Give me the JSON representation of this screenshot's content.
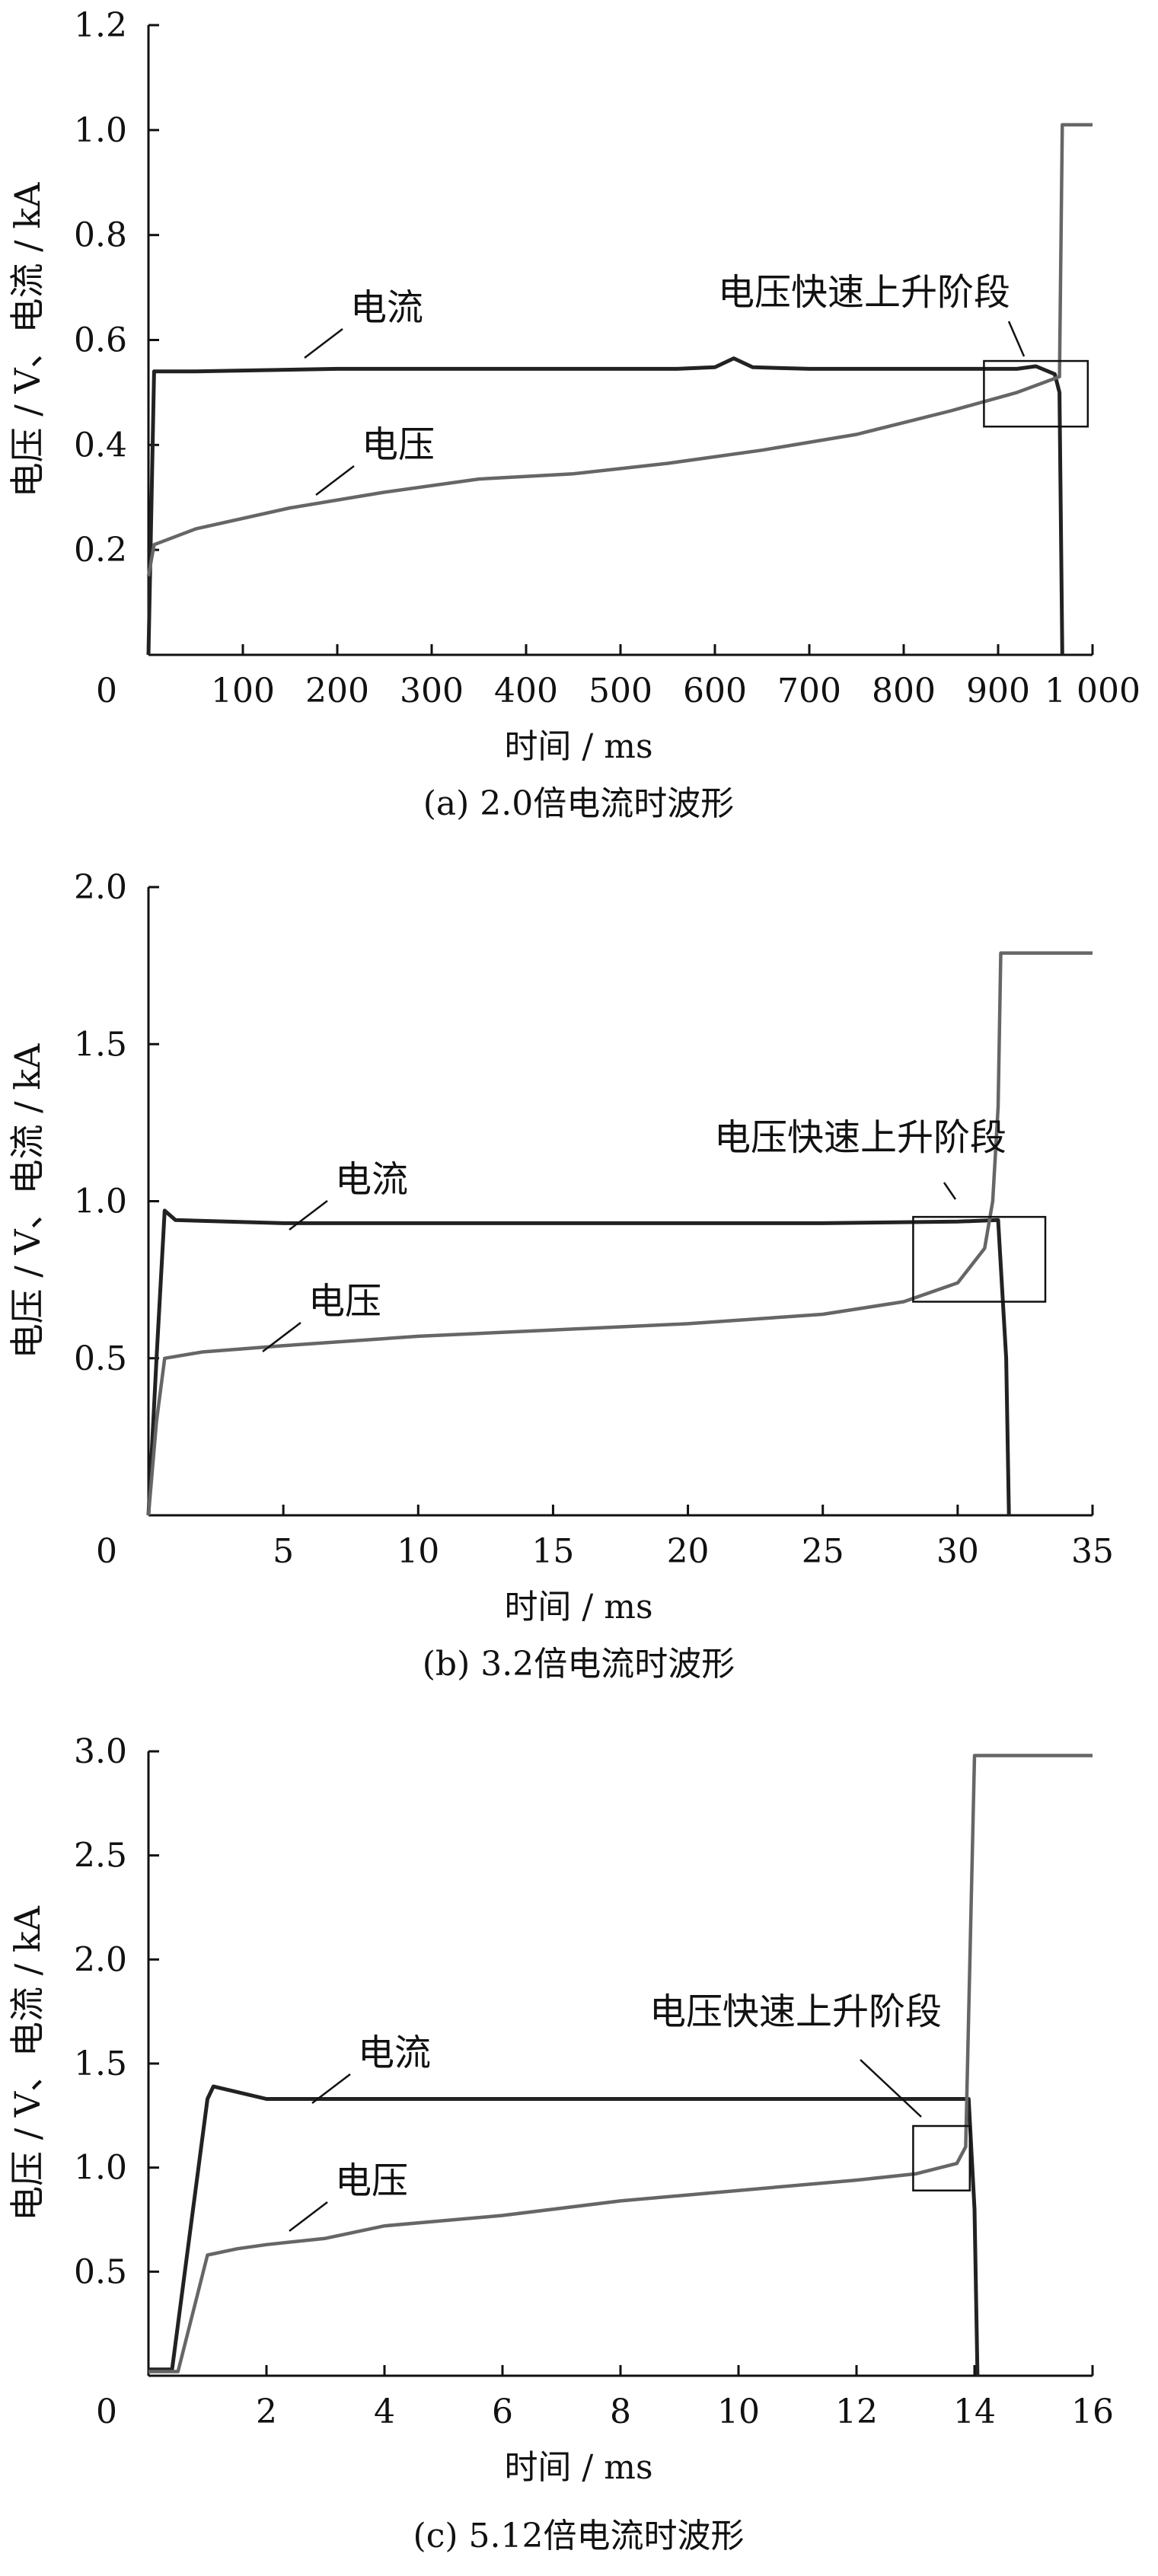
{
  "chart_data": [
    {
      "type": "line",
      "caption": "(a)  2.0倍电流时波形",
      "xlabel": "时间 / ms",
      "ylabel": "电压 / V、电流 / kA",
      "xlim": [
        0,
        1000
      ],
      "ylim": [
        0,
        1.2
      ],
      "x_ticks": [
        0,
        100,
        200,
        300,
        400,
        500,
        600,
        700,
        800,
        900,
        1000
      ],
      "x_tick_labels": [
        "0",
        "100",
        "200",
        "300",
        "400",
        "500",
        "600",
        "700",
        "800",
        "900",
        "1 000"
      ],
      "y_ticks": [
        0.2,
        0.4,
        0.6,
        0.8,
        1.0,
        1.2
      ],
      "y_tick_labels": [
        "0.2",
        "0.4",
        "0.6",
        "0.8",
        "1.0",
        "1.2"
      ],
      "annotation": "电压快速上升阶段",
      "series": [
        {
          "name": "电流",
          "color": "#222222",
          "points": [
            [
              0,
              0
            ],
            [
              6,
              0.54
            ],
            [
              50,
              0.54
            ],
            [
              200,
              0.545
            ],
            [
              400,
              0.545
            ],
            [
              560,
              0.545
            ],
            [
              600,
              0.548
            ],
            [
              620,
              0.565
            ],
            [
              640,
              0.548
            ],
            [
              700,
              0.545
            ],
            [
              850,
              0.545
            ],
            [
              920,
              0.545
            ],
            [
              940,
              0.55
            ],
            [
              960,
              0.535
            ],
            [
              965,
              0.5
            ],
            [
              968,
              0.0
            ]
          ]
        },
        {
          "name": "电压",
          "color": "#666666",
          "points": [
            [
              0,
              0.15
            ],
            [
              6,
              0.21
            ],
            [
              50,
              0.24
            ],
            [
              150,
              0.28
            ],
            [
              250,
              0.31
            ],
            [
              350,
              0.335
            ],
            [
              450,
              0.345
            ],
            [
              550,
              0.365
            ],
            [
              650,
              0.39
            ],
            [
              750,
              0.42
            ],
            [
              850,
              0.465
            ],
            [
              920,
              0.5
            ],
            [
              950,
              0.52
            ],
            [
              965,
              0.53
            ],
            [
              968,
              1.01
            ],
            [
              1000,
              1.01
            ]
          ]
        }
      ]
    },
    {
      "type": "line",
      "caption": "(b)  3.2倍电流时波形",
      "xlabel": "时间 / ms",
      "ylabel": "电压 / V、电流 / kA",
      "xlim": [
        0,
        35
      ],
      "ylim": [
        0,
        2.0
      ],
      "x_ticks": [
        0,
        5,
        10,
        15,
        20,
        25,
        30,
        35
      ],
      "x_tick_labels": [
        "0",
        "5",
        "10",
        "15",
        "20",
        "25",
        "30",
        "35"
      ],
      "y_ticks": [
        0.5,
        1.0,
        1.5,
        2.0
      ],
      "y_tick_labels": [
        "0.5",
        "1.0",
        "1.5",
        "2.0"
      ],
      "annotation": "电压快速上升阶段",
      "series": [
        {
          "name": "电流",
          "color": "#222222",
          "points": [
            [
              0,
              0
            ],
            [
              0.3,
              0.5
            ],
            [
              0.6,
              0.97
            ],
            [
              1.0,
              0.94
            ],
            [
              5,
              0.93
            ],
            [
              10,
              0.93
            ],
            [
              15,
              0.93
            ],
            [
              20,
              0.93
            ],
            [
              25,
              0.93
            ],
            [
              30,
              0.935
            ],
            [
              31.5,
              0.94
            ],
            [
              31.8,
              0.5
            ],
            [
              31.9,
              0.0
            ]
          ]
        },
        {
          "name": "电压",
          "color": "#666666",
          "points": [
            [
              0,
              0
            ],
            [
              0.3,
              0.3
            ],
            [
              0.6,
              0.5
            ],
            [
              2,
              0.52
            ],
            [
              5,
              0.54
            ],
            [
              10,
              0.57
            ],
            [
              15,
              0.59
            ],
            [
              20,
              0.61
            ],
            [
              25,
              0.64
            ],
            [
              28,
              0.68
            ],
            [
              30,
              0.74
            ],
            [
              31,
              0.85
            ],
            [
              31.3,
              1.0
            ],
            [
              31.5,
              1.3
            ],
            [
              31.6,
              1.79
            ],
            [
              35,
              1.79
            ]
          ]
        }
      ]
    },
    {
      "type": "line",
      "caption": "(c)  5.12倍电流时波形",
      "xlabel": "时间 / ms",
      "ylabel": "电压 / V、电流 / kA",
      "xlim": [
        0,
        16
      ],
      "ylim": [
        0,
        3.0
      ],
      "x_ticks": [
        0,
        2,
        4,
        6,
        8,
        10,
        12,
        14,
        16
      ],
      "x_tick_labels": [
        "0",
        "2",
        "4",
        "6",
        "8",
        "10",
        "12",
        "14",
        "16"
      ],
      "y_ticks": [
        0.5,
        1.0,
        1.5,
        2.0,
        2.5,
        3.0
      ],
      "y_tick_labels": [
        "0.5",
        "1.0",
        "1.5",
        "2.0",
        "2.5",
        "3.0"
      ],
      "annotation": "电压快速上升阶段",
      "series": [
        {
          "name": "电流",
          "color": "#222222",
          "points": [
            [
              0,
              0.03
            ],
            [
              0.4,
              0.03
            ],
            [
              1.0,
              1.33
            ],
            [
              1.1,
              1.39
            ],
            [
              2,
              1.33
            ],
            [
              4,
              1.33
            ],
            [
              6,
              1.33
            ],
            [
              8,
              1.33
            ],
            [
              10,
              1.33
            ],
            [
              12,
              1.33
            ],
            [
              13,
              1.33
            ],
            [
              13.9,
              1.33
            ],
            [
              14.0,
              0.8
            ],
            [
              14.05,
              0.0
            ]
          ]
        },
        {
          "name": "电压",
          "color": "#666666",
          "points": [
            [
              0,
              0.02
            ],
            [
              0.5,
              0.02
            ],
            [
              1.0,
              0.58
            ],
            [
              1.5,
              0.61
            ],
            [
              2,
              0.63
            ],
            [
              3,
              0.66
            ],
            [
              4,
              0.72
            ],
            [
              6,
              0.77
            ],
            [
              8,
              0.84
            ],
            [
              10,
              0.89
            ],
            [
              12,
              0.94
            ],
            [
              13,
              0.97
            ],
            [
              13.7,
              1.02
            ],
            [
              13.85,
              1.1
            ],
            [
              14.0,
              2.98
            ],
            [
              16,
              2.98
            ]
          ]
        }
      ]
    }
  ]
}
